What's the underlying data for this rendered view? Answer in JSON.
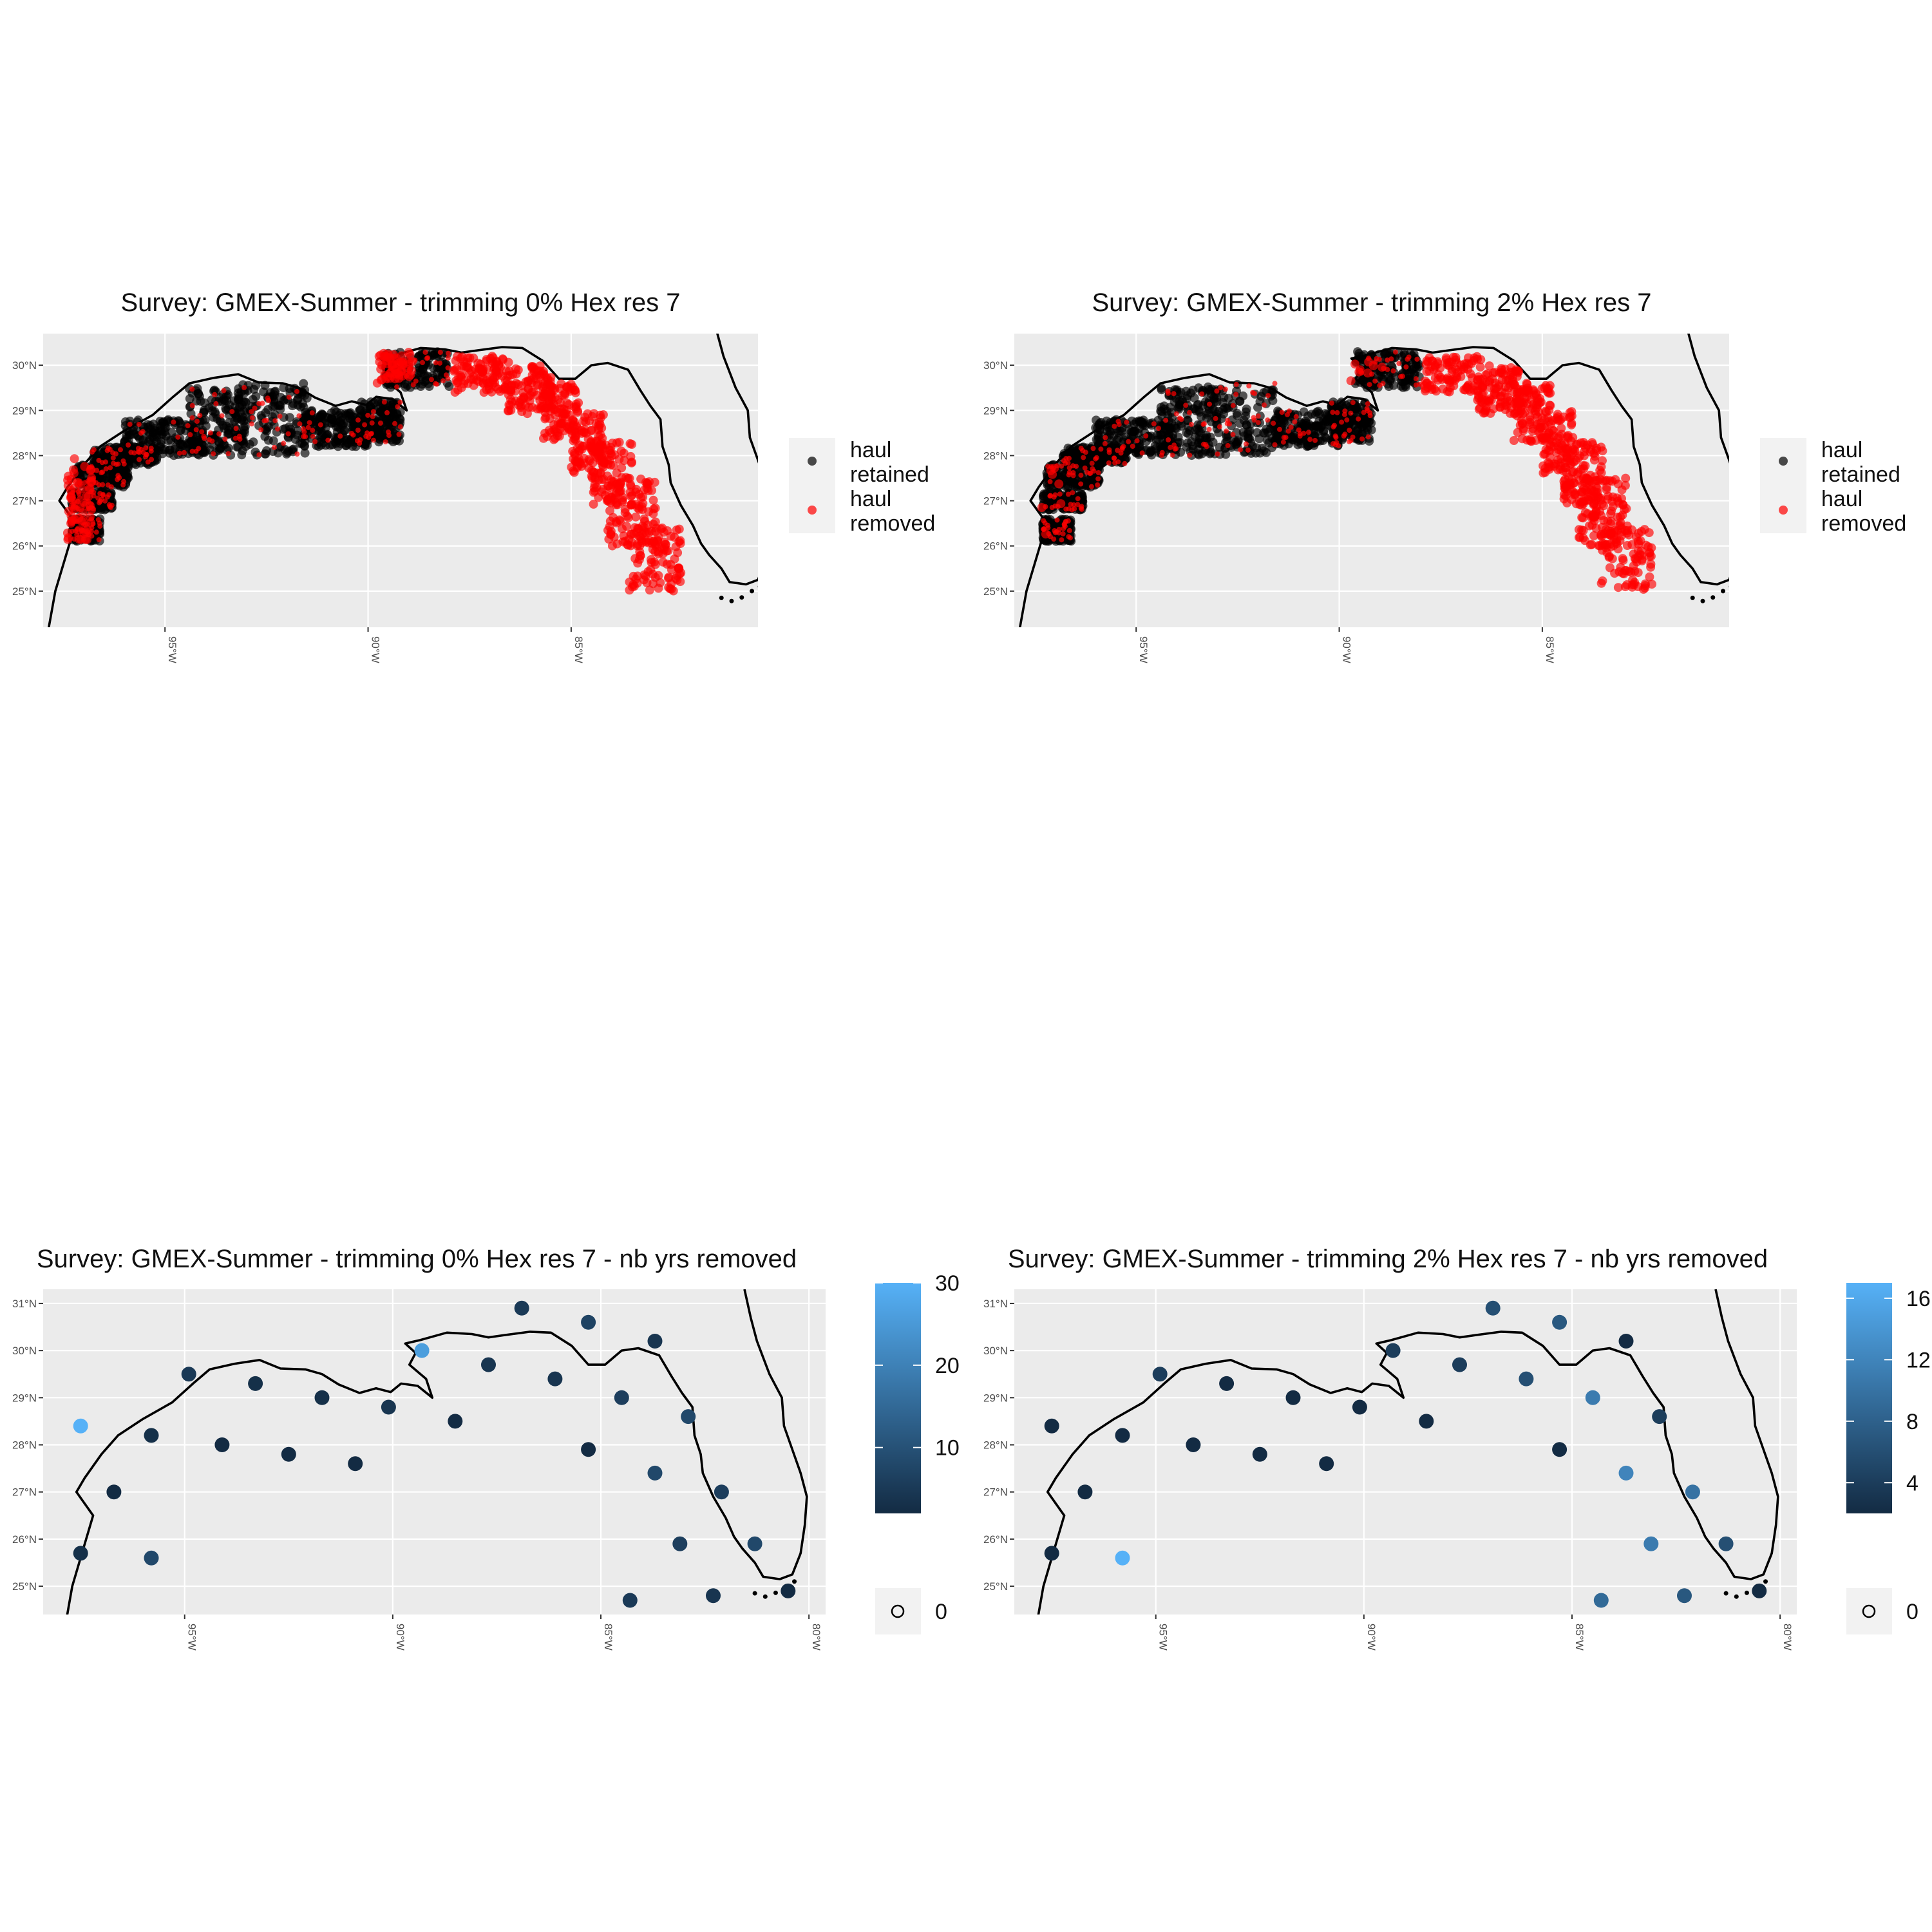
{
  "figure": {
    "layout": "2x2 grid of ggplot map panels",
    "colors": {
      "panel_bg": "#ebebeb",
      "grid": "#ffffff",
      "coast": "#000000",
      "retained": "#000000",
      "removed": "#ff0000",
      "gradient_low": "#132b43",
      "gradient_high": "#56b1f7"
    },
    "panels": [
      {
        "kind": "haul",
        "title": "Survey: GMEX-Summer - trimming 0% Hex res 7",
        "legend": {
          "type": "categorical",
          "entries": [
            {
              "label": [
                "haul",
                "retained"
              ],
              "color": "#000000"
            },
            {
              "label": [
                "haul",
                "removed"
              ],
              "color": "#ff0000"
            }
          ]
        },
        "axes": {
          "x_ticks": [
            "95°W",
            "90°W",
            "85°W"
          ],
          "y_ticks": [
            "25°N",
            "26°N",
            "27°N",
            "28°N",
            "29°N",
            "30°N"
          ]
        }
      },
      {
        "kind": "haul",
        "title": "Survey: GMEX-Summer - trimming 2% Hex res 7",
        "legend": {
          "type": "categorical",
          "entries": [
            {
              "label": [
                "haul",
                "retained"
              ],
              "color": "#000000"
            },
            {
              "label": [
                "haul",
                "removed"
              ],
              "color": "#ff0000"
            }
          ]
        },
        "axes": {
          "x_ticks": [
            "95°W",
            "90°W",
            "85°W"
          ],
          "y_ticks": [
            "25°N",
            "26°N",
            "27°N",
            "28°N",
            "29°N",
            "30°N"
          ]
        }
      },
      {
        "kind": "hex",
        "title": "Survey: GMEX-Summer - trimming 0% Hex res 7 - nb yrs removed",
        "legend": {
          "type": "gradient",
          "ticks": [
            "10",
            "20",
            "30"
          ],
          "zero_label": "0"
        },
        "axes": {
          "x_ticks": [
            "95°W",
            "90°W",
            "85°W",
            "80°W"
          ],
          "y_ticks": [
            "25°N",
            "26°N",
            "27°N",
            "28°N",
            "29°N",
            "30°N",
            "31°N"
          ]
        }
      },
      {
        "kind": "hex",
        "title": "Survey: GMEX-Summer - trimming 2% Hex res 7 - nb yrs removed",
        "legend": {
          "type": "gradient",
          "ticks": [
            "4",
            "8",
            "12",
            "16"
          ],
          "zero_label": "0"
        },
        "axes": {
          "x_ticks": [
            "95°W",
            "90°W",
            "85°W",
            "80°W"
          ],
          "y_ticks": [
            "25°N",
            "26°N",
            "27°N",
            "28°N",
            "29°N",
            "30°N",
            "31°N"
          ]
        }
      }
    ]
  }
}
